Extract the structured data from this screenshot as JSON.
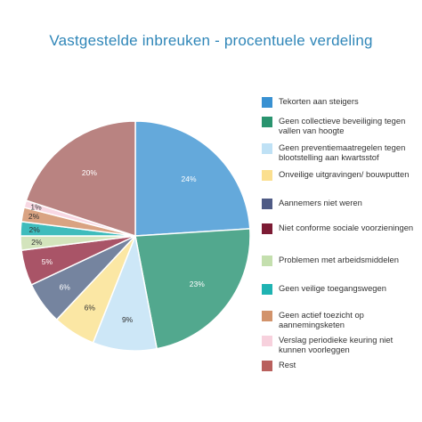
{
  "chart_data": {
    "type": "pie",
    "title": "Vastgestelde inbreuken - procentuele verdeling",
    "unit": "%",
    "legend_position": "right",
    "slices": [
      {
        "label": "Tekorten aan steigers",
        "value": 24,
        "color": "#64a9db"
      },
      {
        "label": "Geen collectieve beveiliging tegen vallen van hoogte",
        "value": 23,
        "color": "#52a88e"
      },
      {
        "label": "Geen preventiemaatregelen tegen blootstelling aan kwartsstof",
        "value": 9,
        "color": "#cde7f7"
      },
      {
        "label": "Onveilige uitgravingen/ bouwputten",
        "value": 6,
        "color": "#fbe7a4"
      },
      {
        "label": "Aannemers niet weren",
        "value": 6,
        "color": "#75849f"
      },
      {
        "label": "Niet conforme sociale voorzieningen",
        "value": 5,
        "color": "#a95467"
      },
      {
        "label": "Problemen met arbeidsmiddelen",
        "value": 2,
        "color": "#d3e4bc"
      },
      {
        "label": "Geen veilige toegangswegen",
        "value": 2,
        "color": "#3fbcbc"
      },
      {
        "label": "Geen actief toezicht op aannemingsketen",
        "value": 2,
        "color": "#d9a382"
      },
      {
        "label": "Verslag periodieke keuring niet kunnen voorleggen",
        "value": 1,
        "color": "#f8d8e3"
      },
      {
        "label": "Rest",
        "value": 20,
        "color": "#b98381"
      }
    ],
    "legend_colors": [
      "#3991d2",
      "#2a946f",
      "#bfe1f5",
      "#fbdf8f",
      "#4f5b85",
      "#7c1b34",
      "#c4dfae",
      "#1fb3b2",
      "#d2936b",
      "#f7d1dd",
      "#b9605d"
    ],
    "value_labels": [
      "24%",
      "23%",
      "9%",
      "6%",
      "6%",
      "5%",
      "2%",
      "2%",
      "2%",
      "1%",
      "20%"
    ]
  }
}
